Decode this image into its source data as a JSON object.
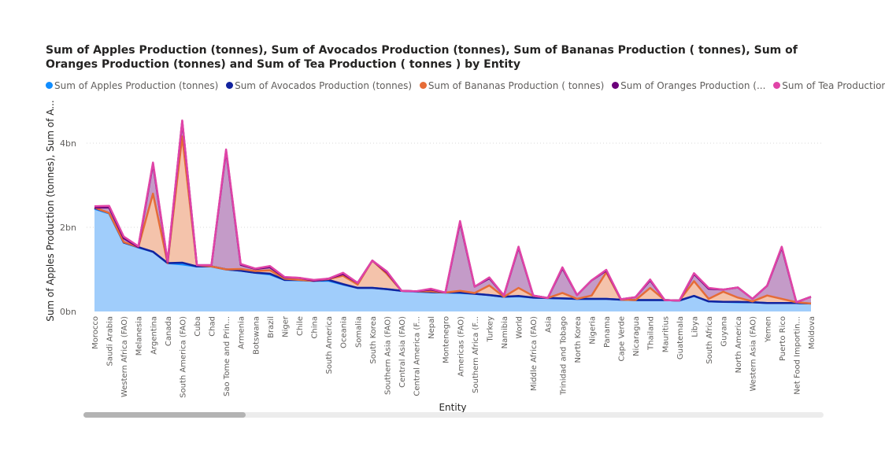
{
  "chart_data": {
    "type": "area",
    "title": "Sum of Apples Production (tonnes), Sum of Avocados Production (tonnes), Sum of Bananas Production ( tonnes), Sum of Oranges Production (tonnes) and Sum of Tea Production ( tonnes ) by Entity",
    "xlabel": "Entity",
    "ylabel": "Sum of Apples Production (tonnes), Sum of A...",
    "ylim": [
      0,
      5
    ],
    "yticks": [
      0,
      2,
      4
    ],
    "ytick_labels": [
      "0bn",
      "2bn",
      "4bn"
    ],
    "stacked": true,
    "grid": true,
    "legend_position": "top",
    "legend": [
      {
        "label": "Sum of Apples Production (tonnes)",
        "color": "#118dff"
      },
      {
        "label": "Sum of Avocados Production (tonnes)",
        "color": "#12239e"
      },
      {
        "label": "Sum of Bananas  Production ( tonnes)",
        "color": "#e66c37"
      },
      {
        "label": "Sum of Oranges  Production (...",
        "color": "#6b007b"
      },
      {
        "label": "Sum of Tea  Production (...",
        "color": "#e044a7"
      }
    ],
    "categories": [
      "Morocco",
      "Saudi Arabia",
      "Western Africa (FAO)",
      "Melanesia",
      "Argentina",
      "Canada",
      "South America (FAO)",
      "Cuba",
      "Chad",
      "Sao Tome and Prin...",
      "Armenia",
      "Botswana",
      "Brazil",
      "Niger",
      "Chile",
      "China",
      "South America",
      "Oceania",
      "Somalia",
      "South Korea",
      "Southern Asia (FAO)",
      "Central Asia (FAO)",
      "Central America (F...",
      "Nepal",
      "Montenegro",
      "Americas (FAO)",
      "Southern Africa (F...",
      "Turkey",
      "Namibia",
      "World",
      "Middle Africa (FAO)",
      "Asia",
      "Trinidad and Tobago",
      "North Korea",
      "Nigeria",
      "Panama",
      "Cape Verde",
      "Nicaragua",
      "Thailand",
      "Mauritius",
      "Guatemala",
      "Libya",
      "South Africa",
      "Guyana",
      "North America",
      "Western Asia (FAO)",
      "Yemen",
      "Puerto Rico",
      "Net Food Importin...",
      "Moldova"
    ],
    "series": [
      {
        "name": "Sum of Apples Production (tonnes)",
        "color": "#118dff",
        "values": [
          2.44,
          2.33,
          1.64,
          1.52,
          1.42,
          1.15,
          1.12,
          1.07,
          1.07,
          1.0,
          0.97,
          0.92,
          0.88,
          0.75,
          0.74,
          0.73,
          0.73,
          0.64,
          0.56,
          0.56,
          0.53,
          0.49,
          0.47,
          0.46,
          0.45,
          0.44,
          0.42,
          0.39,
          0.35,
          0.36,
          0.33,
          0.32,
          0.31,
          0.3,
          0.3,
          0.3,
          0.28,
          0.27,
          0.27,
          0.27,
          0.26,
          0.37,
          0.24,
          0.23,
          0.22,
          0.22,
          0.2,
          0.2,
          0.2,
          0.19
        ]
      },
      {
        "name": "Sum of Avocados Production (tonnes)",
        "color": "#12239e",
        "values": [
          0.02,
          0.01,
          0.0,
          0.01,
          0.0,
          0.0,
          0.04,
          0.0,
          0.0,
          0.0,
          0.0,
          0.0,
          0.02,
          0.0,
          0.01,
          0.0,
          0.02,
          0.01,
          0.0,
          0.0,
          0.0,
          0.0,
          0.01,
          0.0,
          0.0,
          0.01,
          0.0,
          0.0,
          0.0,
          0.01,
          0.0,
          0.0,
          0.0,
          0.0,
          0.0,
          0.0,
          0.0,
          0.0,
          0.0,
          0.0,
          0.0,
          0.0,
          0.0,
          0.0,
          0.01,
          0.0,
          0.0,
          0.0,
          0.0,
          0.0
        ]
      },
      {
        "name": "Sum of Bananas  Production ( tonnes)",
        "color": "#e66c37",
        "values": [
          0.01,
          0.0,
          0.01,
          0.0,
          1.38,
          0.0,
          3.0,
          0.03,
          0.0,
          0.0,
          0.04,
          0.04,
          0.08,
          0.03,
          0.0,
          0.0,
          0.02,
          0.2,
          0.08,
          0.65,
          0.36,
          0.0,
          0.0,
          0.02,
          0.0,
          0.04,
          0.02,
          0.23,
          0.0,
          0.19,
          0.04,
          0.0,
          0.13,
          0.0,
          0.08,
          0.63,
          0.0,
          0.0,
          0.29,
          0.0,
          0.0,
          0.35,
          0.06,
          0.24,
          0.1,
          0.02,
          0.18,
          0.1,
          0.02,
          0.0
        ]
      },
      {
        "name": "Sum of Oranges  Production (...",
        "color": "#6b007b",
        "values": [
          0.0,
          0.13,
          0.09,
          0.0,
          0.71,
          0.02,
          0.36,
          0.0,
          0.03,
          2.82,
          0.1,
          0.05,
          0.07,
          0.03,
          0.05,
          0.0,
          0.01,
          0.04,
          0.04,
          0.0,
          0.04,
          0.0,
          0.0,
          0.04,
          0.0,
          1.63,
          0.15,
          0.17,
          0.03,
          0.96,
          0.01,
          0.0,
          0.59,
          0.09,
          0.36,
          0.04,
          0.01,
          0.07,
          0.18,
          0.0,
          0.0,
          0.17,
          0.24,
          0.05,
          0.24,
          0.06,
          0.23,
          1.22,
          0.0,
          0.16
        ]
      },
      {
        "name": "Sum of Tea  Production (...",
        "color": "#e044a7",
        "values": [
          0.03,
          0.04,
          0.04,
          0.02,
          0.03,
          0.02,
          0.02,
          0.0,
          0.0,
          0.03,
          0.02,
          0.01,
          0.03,
          0.01,
          0.0,
          0.02,
          0.0,
          0.03,
          0.0,
          0.0,
          0.02,
          0.0,
          0.0,
          0.02,
          0.0,
          0.03,
          0.0,
          0.02,
          0.0,
          0.02,
          0.0,
          0.0,
          0.02,
          0.0,
          0.0,
          0.02,
          0.0,
          0.0,
          0.02,
          0.0,
          0.0,
          0.02,
          0.02,
          0.0,
          0.0,
          0.0,
          0.0,
          0.02,
          0.0,
          0.0
        ]
      }
    ]
  }
}
